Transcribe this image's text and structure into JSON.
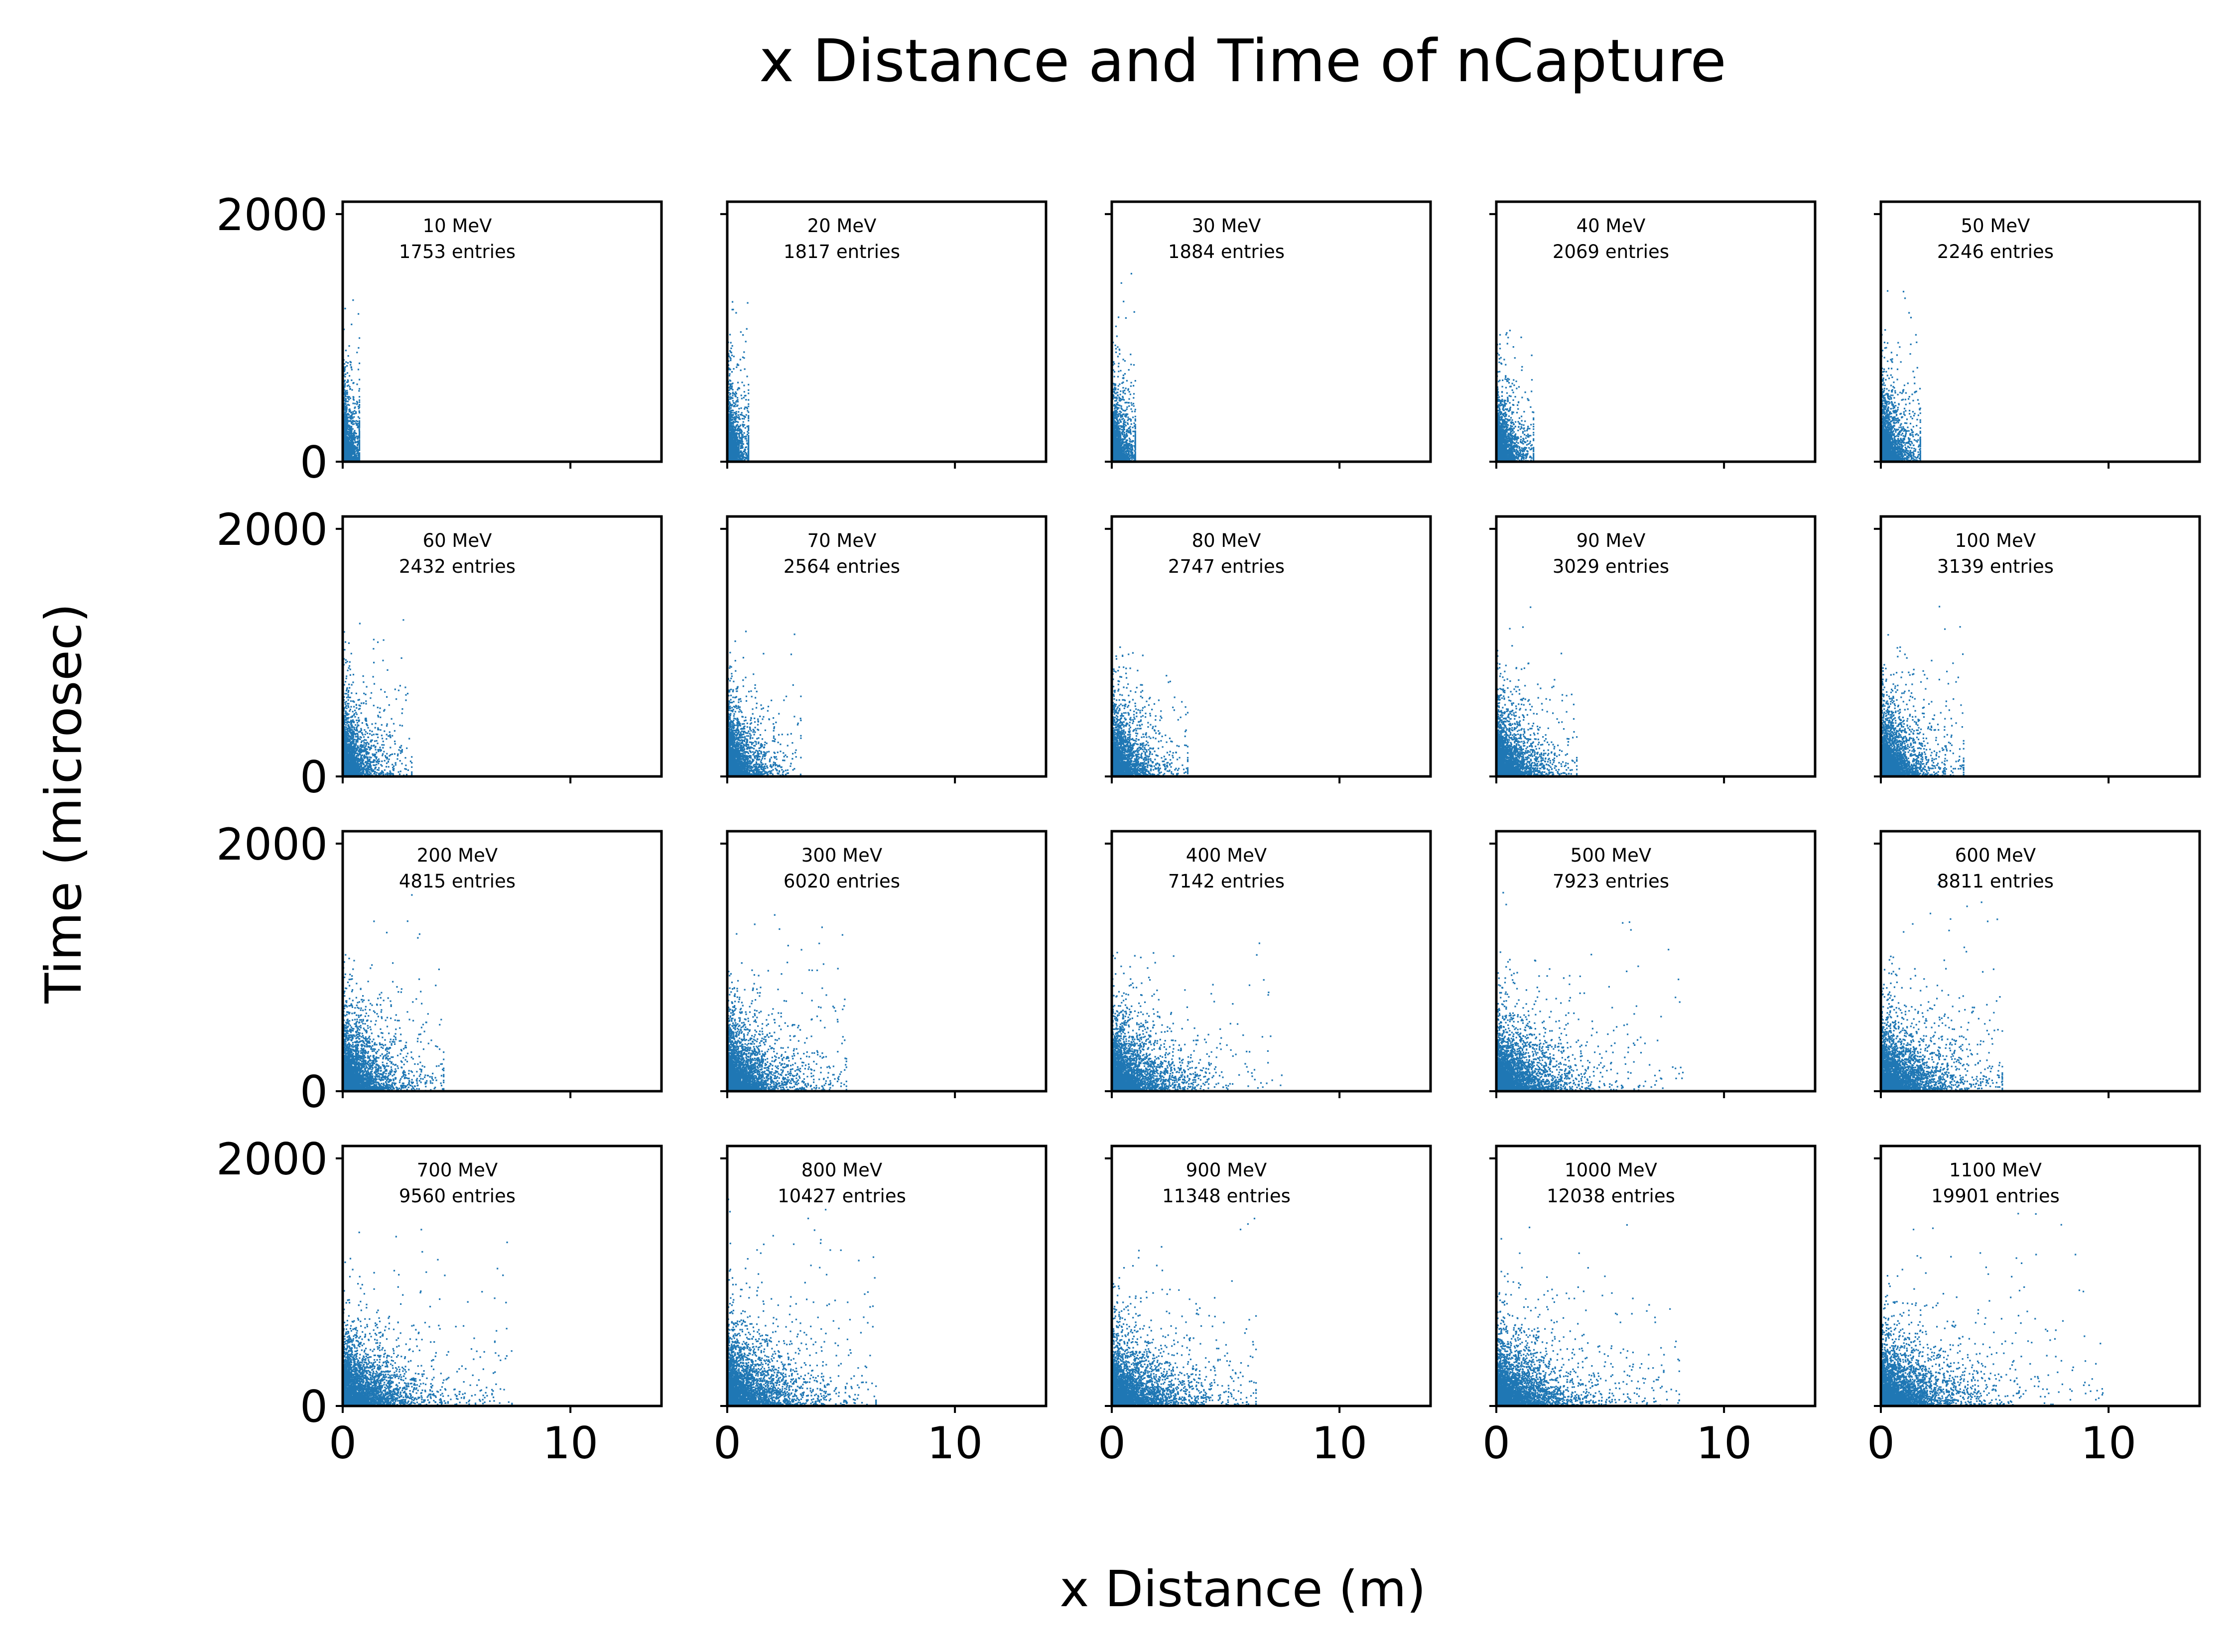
{
  "figure": {
    "title": "x Distance and Time of nCapture",
    "xlabel": "x Distance (m)",
    "ylabel": "Time (microsec)"
  },
  "colors": {
    "points": "#1f77b4",
    "axes": "#000000",
    "background": "#ffffff"
  },
  "chart_data": {
    "type": "scatter",
    "layout": "4x5 subplot grid, shared axes",
    "xlim": [
      0,
      14
    ],
    "ylim": [
      0,
      2100
    ],
    "xticks": [
      0,
      10
    ],
    "yticks": [
      0,
      2000
    ],
    "grid": false,
    "legend": "none",
    "panels": [
      {
        "energy_label": "10 MeV",
        "entries_label": "1753 entries",
        "energy_mev": 10,
        "entries": 1753,
        "x_spread_m": 0.35,
        "y_spread_us": 280,
        "x_max_m": 0.7,
        "y_max_us": 1550
      },
      {
        "energy_label": "20 MeV",
        "entries_label": "1817 entries",
        "energy_mev": 20,
        "entries": 1817,
        "x_spread_m": 0.4,
        "y_spread_us": 290,
        "x_max_m": 0.9,
        "y_max_us": 1550
      },
      {
        "energy_label": "30 MeV",
        "entries_label": "1884 entries",
        "energy_mev": 30,
        "entries": 1884,
        "x_spread_m": 0.45,
        "y_spread_us": 290,
        "x_max_m": 1.0,
        "y_max_us": 1600
      },
      {
        "energy_label": "40 MeV",
        "entries_label": "2069 entries",
        "energy_mev": 40,
        "entries": 2069,
        "x_spread_m": 0.55,
        "y_spread_us": 290,
        "x_max_m": 1.6,
        "y_max_us": 1200
      },
      {
        "energy_label": "50 MeV",
        "entries_label": "2246 entries",
        "energy_mev": 50,
        "entries": 2246,
        "x_spread_m": 0.6,
        "y_spread_us": 290,
        "x_max_m": 1.7,
        "y_max_us": 1500
      },
      {
        "energy_label": "60 MeV",
        "entries_label": "2432 entries",
        "energy_mev": 60,
        "entries": 2432,
        "x_spread_m": 0.7,
        "y_spread_us": 290,
        "x_max_m": 3.0,
        "y_max_us": 1450
      },
      {
        "energy_label": "70 MeV",
        "entries_label": "2564 entries",
        "energy_mev": 70,
        "entries": 2564,
        "x_spread_m": 0.75,
        "y_spread_us": 290,
        "x_max_m": 3.2,
        "y_max_us": 1450
      },
      {
        "energy_label": "80 MeV",
        "entries_label": "2747 entries",
        "energy_mev": 80,
        "entries": 2747,
        "x_spread_m": 0.8,
        "y_spread_us": 290,
        "x_max_m": 3.3,
        "y_max_us": 1300
      },
      {
        "energy_label": "90 MeV",
        "entries_label": "3029 entries",
        "energy_mev": 90,
        "entries": 3029,
        "x_spread_m": 0.85,
        "y_spread_us": 290,
        "x_max_m": 3.5,
        "y_max_us": 1400
      },
      {
        "energy_label": "100 MeV",
        "entries_label": "3139 entries",
        "energy_mev": 100,
        "entries": 3139,
        "x_spread_m": 0.9,
        "y_spread_us": 290,
        "x_max_m": 3.6,
        "y_max_us": 1450
      },
      {
        "energy_label": "200 MeV",
        "entries_label": "4815 entries",
        "energy_mev": 200,
        "entries": 4815,
        "x_spread_m": 1.1,
        "y_spread_us": 300,
        "x_max_m": 4.4,
        "y_max_us": 1700
      },
      {
        "energy_label": "300 MeV",
        "entries_label": "6020 entries",
        "energy_mev": 300,
        "entries": 6020,
        "x_spread_m": 1.25,
        "y_spread_us": 300,
        "x_max_m": 5.2,
        "y_max_us": 1600
      },
      {
        "energy_label": "400 MeV",
        "entries_label": "7142 entries",
        "energy_mev": 400,
        "entries": 7142,
        "x_spread_m": 1.35,
        "y_spread_us": 300,
        "x_max_m": 7.5,
        "y_max_us": 1400
      },
      {
        "energy_label": "500 MeV",
        "entries_label": "7923 entries",
        "energy_mev": 500,
        "entries": 7923,
        "x_spread_m": 1.4,
        "y_spread_us": 300,
        "x_max_m": 8.2,
        "y_max_us": 1700
      },
      {
        "energy_label": "600 MeV",
        "entries_label": "8811 entries",
        "energy_mev": 600,
        "entries": 8811,
        "x_spread_m": 1.45,
        "y_spread_us": 300,
        "x_max_m": 5.3,
        "y_max_us": 1700
      },
      {
        "energy_label": "700 MeV",
        "entries_label": "9560 entries",
        "energy_mev": 700,
        "entries": 9560,
        "x_spread_m": 1.5,
        "y_spread_us": 300,
        "x_max_m": 7.4,
        "y_max_us": 1700
      },
      {
        "energy_label": "800 MeV",
        "entries_label": "10427 entries",
        "energy_mev": 800,
        "entries": 10427,
        "x_spread_m": 1.55,
        "y_spread_us": 300,
        "x_max_m": 6.5,
        "y_max_us": 1850
      },
      {
        "energy_label": "900 MeV",
        "entries_label": "11348 entries",
        "energy_mev": 900,
        "entries": 11348,
        "x_spread_m": 1.55,
        "y_spread_us": 300,
        "x_max_m": 6.3,
        "y_max_us": 1700
      },
      {
        "energy_label": "1000 MeV",
        "entries_label": "12038 entries",
        "energy_mev": 1000,
        "entries": 12038,
        "x_spread_m": 1.6,
        "y_spread_us": 300,
        "x_max_m": 8.0,
        "y_max_us": 1600
      },
      {
        "energy_label": "1100 MeV",
        "entries_label": "19901 entries",
        "energy_mev": 1100,
        "entries": 19901,
        "x_spread_m": 1.65,
        "y_spread_us": 300,
        "x_max_m": 9.9,
        "y_max_us": 1750
      }
    ]
  }
}
